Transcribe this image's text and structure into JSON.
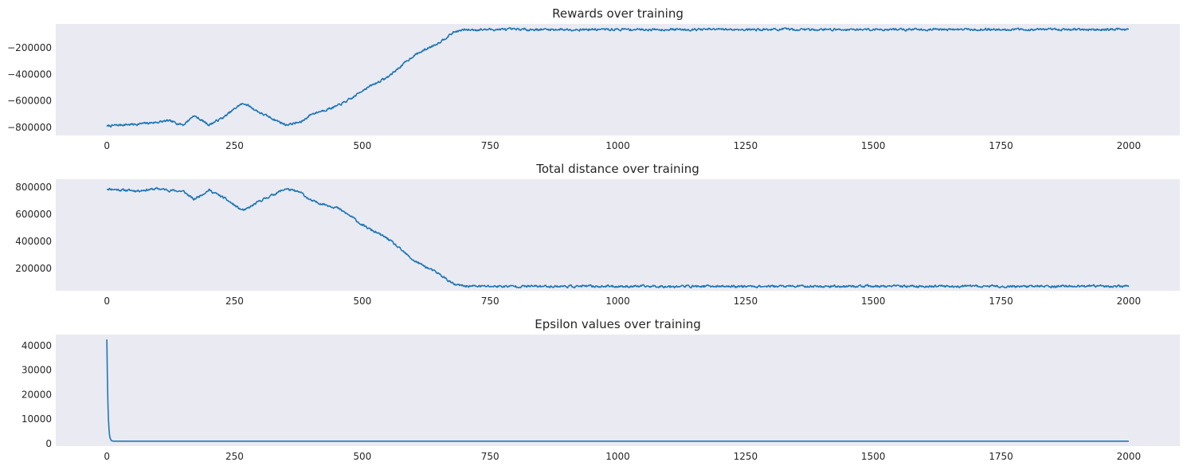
{
  "figure": {
    "background": "#ffffff",
    "axes_facecolor": "#eaeaf2",
    "line_color": "#1f77b4"
  },
  "chart_data": [
    {
      "type": "line",
      "title": "Rewards over training",
      "xlabel": "",
      "ylabel": "",
      "grid": false,
      "xlim": [
        -100,
        2100
      ],
      "ylim": [
        -860000,
        -20000
      ],
      "xticks": [
        0,
        250,
        500,
        750,
        1000,
        1250,
        1500,
        1750,
        2000
      ],
      "xtick_labels": [
        "0",
        "250",
        "500",
        "750",
        "1000",
        "1250",
        "1500",
        "1750",
        "2000"
      ],
      "yticks": [
        -800000,
        -600000,
        -400000,
        -200000
      ],
      "ytick_labels": [
        "−800000",
        "−600000",
        "−400000",
        "−200000"
      ],
      "noise": 15000,
      "seed": 7,
      "x": [
        0,
        30,
        60,
        100,
        120,
        150,
        170,
        200,
        230,
        260,
        270,
        300,
        350,
        380,
        400,
        450,
        480,
        500,
        550,
        600,
        650,
        680,
        700,
        750,
        1000,
        1500,
        2000
      ],
      "y": [
        -790000,
        -780000,
        -775000,
        -760000,
        -750000,
        -780000,
        -710000,
        -780000,
        -720000,
        -630000,
        -620000,
        -690000,
        -780000,
        -760000,
        -700000,
        -640000,
        -580000,
        -520000,
        -420000,
        -260000,
        -160000,
        -80000,
        -65000,
        -62000,
        -62000,
        -62000,
        -62000
      ]
    },
    {
      "type": "line",
      "title": "Total distance over training",
      "xlabel": "",
      "ylabel": "",
      "grid": false,
      "xlim": [
        -100,
        2100
      ],
      "ylim": [
        35000,
        860000
      ],
      "xticks": [
        0,
        250,
        500,
        750,
        1000,
        1250,
        1500,
        1750,
        2000
      ],
      "xtick_labels": [
        "0",
        "250",
        "500",
        "750",
        "1000",
        "1250",
        "1500",
        "1750",
        "2000"
      ],
      "yticks": [
        200000,
        400000,
        600000,
        800000
      ],
      "ytick_labels": [
        "200000",
        "400000",
        "600000",
        "800000"
      ],
      "noise": 15000,
      "seed": 11,
      "x": [
        0,
        30,
        60,
        100,
        120,
        150,
        170,
        200,
        230,
        260,
        270,
        300,
        350,
        380,
        400,
        450,
        480,
        500,
        550,
        600,
        650,
        680,
        700,
        750,
        1000,
        1500,
        2000
      ],
      "y": [
        790000,
        780000,
        775000,
        790000,
        780000,
        770000,
        710000,
        780000,
        720000,
        640000,
        630000,
        700000,
        790000,
        760000,
        700000,
        650000,
        580000,
        520000,
        420000,
        260000,
        160000,
        80000,
        70000,
        68000,
        68000,
        68000,
        68000
      ]
    },
    {
      "type": "line",
      "title": "Epsilon values over training",
      "xlabel": "",
      "ylabel": "",
      "grid": false,
      "xlim": [
        -100,
        2100
      ],
      "ylim": [
        -1000,
        44500
      ],
      "xticks": [
        0,
        250,
        500,
        750,
        1000,
        1250,
        1500,
        1750,
        2000
      ],
      "xtick_labels": [
        "0",
        "250",
        "500",
        "750",
        "1000",
        "1250",
        "1500",
        "1750",
        "2000"
      ],
      "yticks": [
        0,
        10000,
        20000,
        30000,
        40000
      ],
      "ytick_labels": [
        "0",
        "10000",
        "20000",
        "30000",
        "40000"
      ],
      "noise": 0,
      "seed": 0,
      "x": [
        0,
        1,
        2,
        3,
        4,
        5,
        6,
        8,
        10,
        15,
        2000
      ],
      "y": [
        42500,
        27000,
        17000,
        10500,
        6500,
        4000,
        2500,
        1500,
        1100,
        1000,
        1000
      ]
    }
  ]
}
